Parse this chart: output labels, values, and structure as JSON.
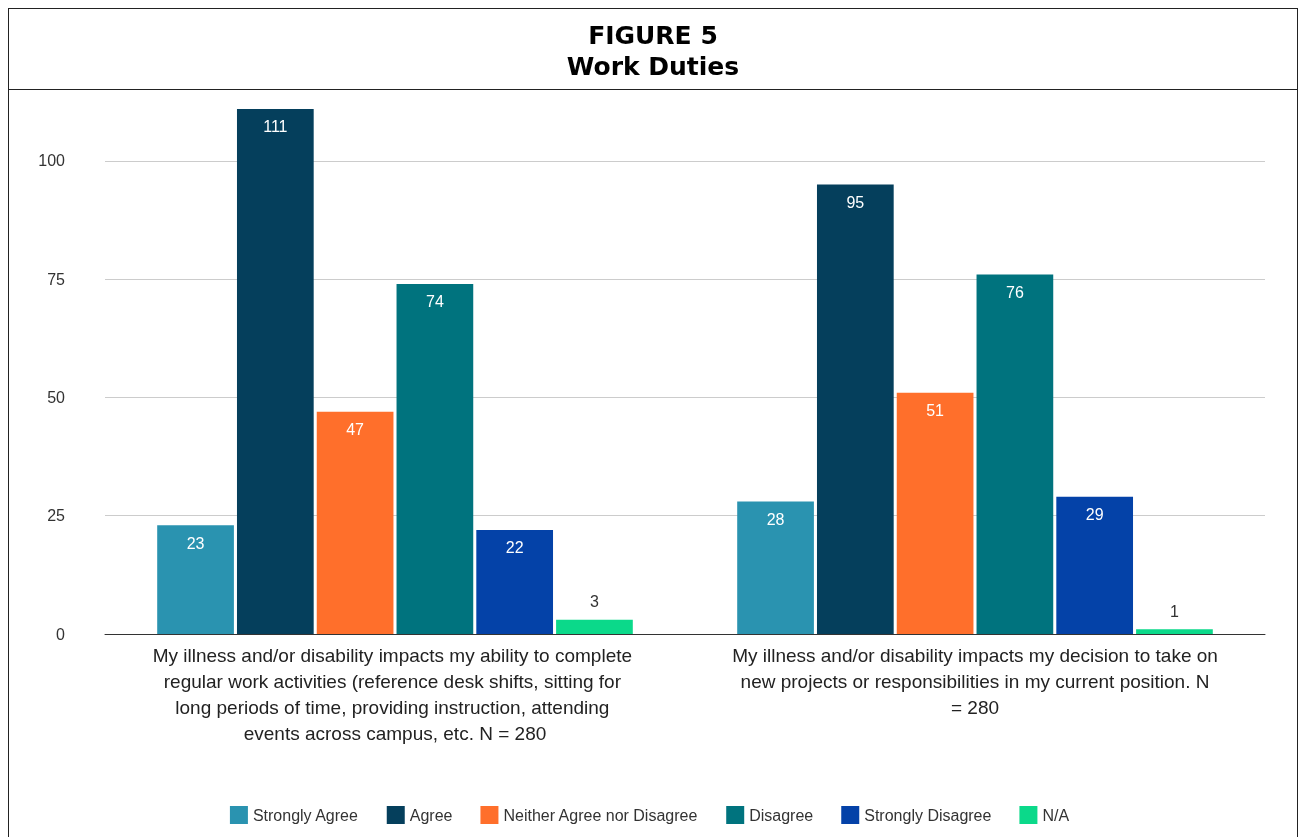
{
  "chart_data": {
    "type": "bar",
    "title": "FIGURE 5",
    "subtitle": "Work Duties",
    "categories": [
      "My illness and/or disability impacts my ability to complete regular work activities (reference desk shifts, sitting for long periods of time, providing instruction, attending events across campus, etc. N = 280",
      "My illness and/or disability impacts my decision to take on new projects or responsibilities in my current position. N = 280"
    ],
    "series": [
      {
        "name": "Strongly Agree",
        "color": "#2a93b0",
        "values": [
          23,
          28
        ]
      },
      {
        "name": "Agree",
        "color": "#053f5c",
        "values": [
          111,
          95
        ]
      },
      {
        "name": "Neither Agree nor Disagree",
        "color": "#ff6f2b",
        "values": [
          47,
          51
        ]
      },
      {
        "name": "Disagree",
        "color": "#00737e",
        "values": [
          74,
          76
        ]
      },
      {
        "name": "Strongly Disagree",
        "color": "#0442a8",
        "values": [
          22,
          29
        ]
      },
      {
        "name": "N/A",
        "color": "#0bd98a",
        "values": [
          3,
          1
        ]
      }
    ],
    "ylim": [
      0,
      115
    ],
    "yticks": [
      0,
      25,
      50,
      75,
      100
    ],
    "grid": "y",
    "legend": "bottom",
    "data_labels": true
  }
}
